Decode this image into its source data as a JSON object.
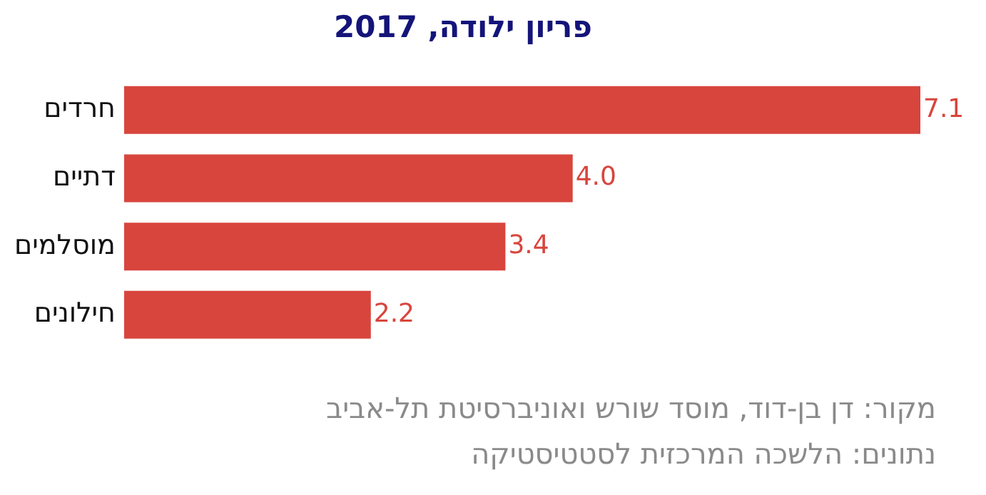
{
  "chart_data": {
    "type": "bar",
    "orientation": "horizontal",
    "title": "פריון ילודה, 2017",
    "categories": [
      "חרדים",
      "דתיים",
      "מוסלמים",
      "חילונים"
    ],
    "values": [
      7.1,
      4.0,
      3.4,
      2.2
    ],
    "value_labels": [
      "7.1",
      "4.0",
      "3.4",
      "2.2"
    ],
    "color": "#d8453d",
    "xlim": [
      0,
      7.1
    ],
    "tick_labels": "y",
    "annotations": [
      "מקור: דן בן-דוד, מוסד שורש ואוניברסיטת תל-אביב",
      "נתונים: הלשכה המרכזית לסטטיסטיקה"
    ]
  }
}
